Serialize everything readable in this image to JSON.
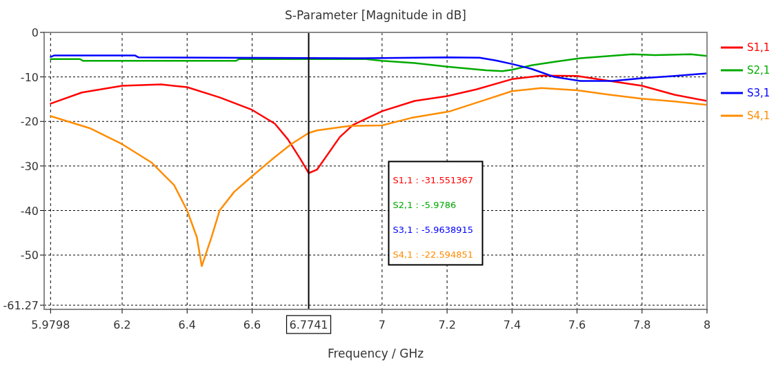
{
  "chart_data": {
    "type": "line",
    "title": "S-Parameter [Magnitude in dB]",
    "xlabel": "Frequency / GHz",
    "xlim": [
      5.96,
      8
    ],
    "xticks": [
      5.9798,
      6.2,
      6.4,
      6.6,
      7,
      7.2,
      7.4,
      7.6,
      7.8,
      8
    ],
    "ylim": [
      -62.2,
      0
    ],
    "yticks": [
      0,
      -10,
      -20,
      -30,
      -40,
      -50,
      -61.27
    ],
    "grid": true,
    "legend": "right",
    "line_style": "solid",
    "ref_lines": [
      {
        "axis": "x",
        "value": 6.7741,
        "label": "6.7741",
        "color": "#000000"
      }
    ],
    "annotations": [
      "S1,1 : -31.551367",
      "S2,1 : -5.9786",
      "S3,1 : -5.9638915",
      "S4,1 : -22.594851"
    ],
    "series": [
      {
        "name": "S1,1",
        "color": "#ff0000",
        "x": [
          5.98,
          6.076,
          6.2,
          6.32,
          6.4,
          6.5,
          6.6,
          6.67,
          6.71,
          6.75,
          6.7741,
          6.8,
          6.87,
          6.91,
          7.0,
          7.1,
          7.2,
          7.29,
          7.4,
          7.49,
          7.6,
          7.69,
          7.8,
          7.9,
          8.0
        ],
        "values": [
          -16,
          -13.5,
          -12,
          -11.7,
          -12.3,
          -14.6,
          -17.4,
          -20.5,
          -24,
          -28.6,
          -31.6,
          -30.8,
          -23.5,
          -20.8,
          -17.7,
          -15.4,
          -14.3,
          -12.8,
          -10.5,
          -9.7,
          -9.8,
          -10.8,
          -12,
          -14,
          -15.4
        ]
      },
      {
        "name": "S2,1",
        "color": "#00aa00",
        "x": [
          5.98,
          6.07,
          6.08,
          6.55,
          6.56,
          6.95,
          7.0,
          7.1,
          7.2,
          7.32,
          7.37,
          7.4,
          7.46,
          7.53,
          7.61,
          7.7,
          7.77,
          7.84,
          7.95,
          8.0
        ],
        "values": [
          -6,
          -6,
          -6.4,
          -6.4,
          -6,
          -6,
          -6.4,
          -6.9,
          -7.7,
          -8.5,
          -8.7,
          -8.4,
          -7.4,
          -6.6,
          -5.8,
          -5.3,
          -4.9,
          -5.1,
          -4.9,
          -5.3
        ]
      },
      {
        "name": "S3,1",
        "color": "#0000ff",
        "x": [
          5.98,
          5.99,
          6.24,
          6.25,
          6.95,
          7.2,
          7.3,
          7.35,
          7.4,
          7.46,
          7.53,
          7.61,
          7.71,
          7.8,
          7.9,
          8.0
        ],
        "values": [
          -5.5,
          -5.2,
          -5.2,
          -5.6,
          -5.8,
          -5.6,
          -5.7,
          -6.3,
          -7.1,
          -8.2,
          -10,
          -10.9,
          -10.9,
          -10.3,
          -9.8,
          -9.2
        ]
      },
      {
        "name": "S4,1",
        "color": "#ff8c00",
        "x": [
          5.98,
          6.1,
          6.2,
          6.29,
          6.36,
          6.4,
          6.43,
          6.445,
          6.475,
          6.5,
          6.545,
          6.6,
          6.66,
          6.72,
          6.7741,
          6.8,
          6.9,
          7.0,
          7.09,
          7.21,
          7.29,
          7.4,
          7.49,
          7.6,
          7.7,
          7.8,
          7.9,
          8.0
        ],
        "values": [
          -18.8,
          -21.5,
          -25.1,
          -29.2,
          -34.3,
          -40,
          -46,
          -52.5,
          -46,
          -40,
          -35.8,
          -32.3,
          -28.6,
          -25.1,
          -22.6,
          -22,
          -21,
          -20.9,
          -19.2,
          -17.7,
          -15.8,
          -13.2,
          -12.5,
          -13,
          -14,
          -14.9,
          -15.5,
          -16.3
        ]
      }
    ]
  }
}
